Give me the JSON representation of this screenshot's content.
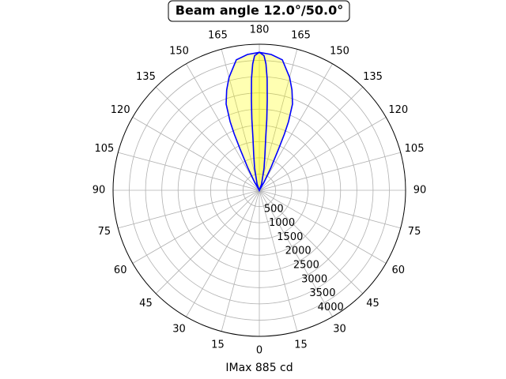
{
  "chart_data": {
    "type": "polar",
    "title": "Beam angle 12.0°/50.0°",
    "xlabel": "IMax 885 cd",
    "rlim": [
      0,
      4500
    ],
    "rticks": [
      500,
      1000,
      1500,
      2000,
      2500,
      3000,
      3500,
      4000
    ],
    "thetaticks": [
      {
        "value": 0,
        "label": "0"
      },
      {
        "value": 15,
        "label": "15"
      },
      {
        "value": 30,
        "label": "30"
      },
      {
        "value": 45,
        "label": "45"
      },
      {
        "value": 60,
        "label": "60"
      },
      {
        "value": 75,
        "label": "75"
      },
      {
        "value": 90,
        "label": "90"
      },
      {
        "value": 105,
        "label": "105"
      },
      {
        "value": 120,
        "label": "120"
      },
      {
        "value": 135,
        "label": "135"
      },
      {
        "value": 150,
        "label": "150"
      },
      {
        "value": 165,
        "label": "165"
      },
      {
        "value": 180,
        "label": "180"
      },
      {
        "value": 195,
        "label": "165"
      },
      {
        "value": 210,
        "label": "150"
      },
      {
        "value": 225,
        "label": "135"
      },
      {
        "value": 240,
        "label": "120"
      },
      {
        "value": 255,
        "label": "105"
      },
      {
        "value": 270,
        "label": "90"
      },
      {
        "value": 285,
        "label": "75"
      },
      {
        "value": 300,
        "label": "60"
      },
      {
        "value": 315,
        "label": "45"
      },
      {
        "value": 330,
        "label": "30"
      },
      {
        "value": 345,
        "label": "15"
      }
    ],
    "grid": true,
    "series": [
      {
        "color": "#0000ff",
        "fill": "#ffff00",
        "theta": [
          140,
          150,
          153,
          155,
          156,
          157,
          159,
          162,
          165,
          170,
          175,
          180,
          185,
          190,
          195,
          198,
          201,
          203,
          204,
          205,
          207,
          210,
          220
        ],
        "values": [
          0,
          300,
          800,
          1400,
          1900,
          2300,
          2850,
          3250,
          3600,
          4080,
          4200,
          4250,
          4200,
          4080,
          3600,
          3250,
          2850,
          2300,
          1900,
          1400,
          800,
          300,
          0
        ]
      },
      {
        "color": "#0000ff",
        "fill": "#ffff00",
        "theta": [
          140,
          160,
          168,
          171,
          173,
          174,
          175,
          176,
          177,
          178,
          180,
          182,
          183,
          184,
          185,
          186,
          187,
          189,
          192,
          200,
          220
        ],
        "values": [
          0,
          200,
          700,
          1100,
          1600,
          2200,
          2800,
          3450,
          3900,
          4150,
          4250,
          4150,
          3900,
          3450,
          2800,
          2200,
          1600,
          1100,
          700,
          200,
          0
        ]
      }
    ]
  }
}
